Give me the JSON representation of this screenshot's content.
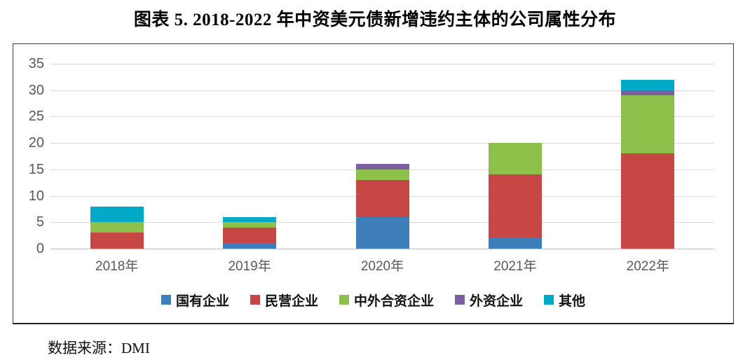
{
  "title": "图表 5.  2018-2022 年中资美元债新增违约主体的公司属性分布",
  "source": "数据来源：DMI",
  "chart_data": {
    "type": "bar",
    "stacked": true,
    "title": "图表 5. 2018-2022 年中资美元债新增违约主体的公司属性分布",
    "categories": [
      "2018年",
      "2019年",
      "2020年",
      "2021年",
      "2022年"
    ],
    "series": [
      {
        "name": "国有企业",
        "color": "#3D7EBB",
        "values": [
          0,
          1,
          6,
          2,
          0
        ]
      },
      {
        "name": "民营企业",
        "color": "#C74747",
        "values": [
          3,
          3,
          7,
          12,
          18
        ]
      },
      {
        "name": "中外合资企业",
        "color": "#8DC04B",
        "values": [
          2,
          1,
          2,
          6,
          11
        ]
      },
      {
        "name": "外资企业",
        "color": "#7B5FA0",
        "values": [
          0,
          0,
          1,
          0,
          1
        ]
      },
      {
        "name": "其他",
        "color": "#00A9C6",
        "values": [
          3,
          1,
          0,
          0,
          2
        ]
      }
    ],
    "totals": [
      8,
      6,
      16,
      20,
      32
    ],
    "xlabel": "",
    "ylabel": "",
    "ylim": [
      0,
      35
    ],
    "ytick_step": 5,
    "yticks": [
      0,
      5,
      10,
      15,
      20,
      25,
      30,
      35
    ],
    "grid": true,
    "legend_position": "bottom",
    "axis_label_color": "#595959",
    "gridline_color": "#D9D9D9",
    "zero_line_color": "#C0C0C0"
  }
}
